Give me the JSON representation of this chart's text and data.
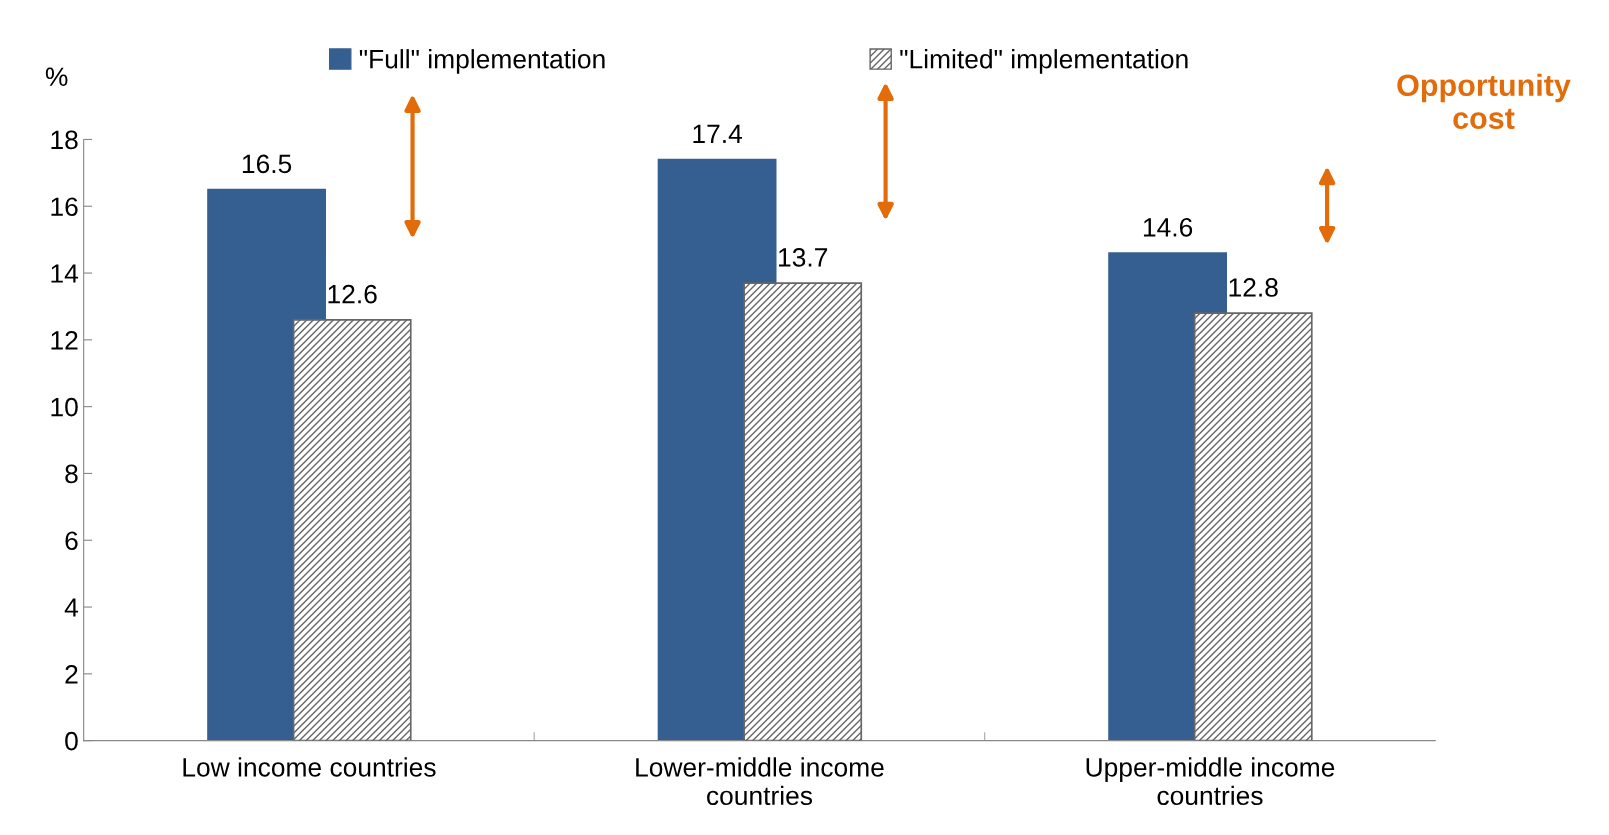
{
  "chart_data": {
    "type": "bar",
    "categories": [
      "Low income countries",
      "Lower-middle income\ncountries",
      "Upper-middle income\ncountries"
    ],
    "series": [
      {
        "name": "\"Full\" implementation",
        "color": "#365f91",
        "values": [
          16.5,
          17.4,
          14.6
        ]
      },
      {
        "name": "\"Limited\" implementation",
        "color": "#666666",
        "values": [
          12.6,
          13.7,
          12.8
        ]
      }
    ],
    "ylabel": "%",
    "ylim": [
      0,
      18
    ],
    "yticks": [
      0,
      2,
      4,
      6,
      8,
      10,
      12,
      14,
      16,
      18
    ],
    "data_labels": true,
    "grid": false,
    "legend": "top",
    "annotations": [
      "Opportunity\ncost"
    ]
  }
}
